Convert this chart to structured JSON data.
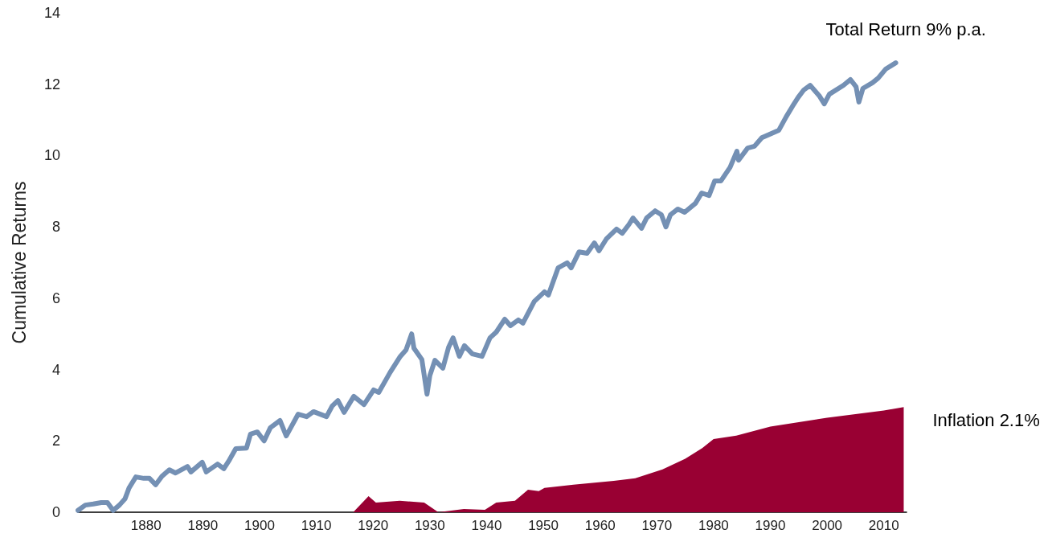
{
  "chart_data": {
    "type": "line",
    "ylabel": "Cumulative Returns",
    "xlim": [
      1868,
      2014
    ],
    "xticks": [
      1880,
      1890,
      1900,
      1910,
      1920,
      1930,
      1940,
      1950,
      1960,
      1970,
      1980,
      1990,
      2000,
      2010
    ],
    "ylim": [
      0,
      14
    ],
    "yticks": [
      0,
      2,
      4,
      6,
      8,
      10,
      12,
      14
    ],
    "marker": "none",
    "series": [
      {
        "name": "Total Return 9% p.a.",
        "color": "#7490b4",
        "x": [
          1868,
          1869.3,
          1870.7,
          1872.1,
          1873.2,
          1874.2,
          1875.3,
          1876.3,
          1877.0,
          1878.2,
          1879.6,
          1880.6,
          1881.7,
          1882.8,
          1884.1,
          1885.2,
          1887.3,
          1887.9,
          1889.9,
          1890.6,
          1892.6,
          1893.7,
          1894.7,
          1895.8,
          1897.7,
          1898.4,
          1899.6,
          1900.8,
          1901.9,
          1903.6,
          1904.7,
          1906.8,
          1908.3,
          1909.5,
          1911.8,
          1912.8,
          1913.8,
          1914.9,
          1916.6,
          1918.4,
          1920.1,
          1921.0,
          1923.0,
          1924.8,
          1925.8,
          1926.8,
          1927.2,
          1928.6,
          1929.5,
          1930.0,
          1930.9,
          1932.3,
          1933.3,
          1934.1,
          1935.2,
          1936.1,
          1937.5,
          1939.2,
          1940.6,
          1941.7,
          1943.2,
          1944.2,
          1945.6,
          1946.4,
          1948.4,
          1950.2,
          1950.9,
          1952.6,
          1954.2,
          1954.9,
          1956.3,
          1957.7,
          1959.0,
          1959.8,
          1961.1,
          1962.9,
          1963.9,
          1965.1,
          1965.8,
          1967.3,
          1968.2,
          1969.7,
          1970.8,
          1971.6,
          1972.4,
          1973.7,
          1974.9,
          1976.8,
          1977.9,
          1979.2,
          1980.2,
          1981.3,
          1982.9,
          1984.1,
          1984.4,
          1986.0,
          1987.2,
          1988.5,
          1990.2,
          1991.5,
          1992.8,
          1993.9,
          1994.9,
          1995.9,
          1997.0,
          1998.6,
          1999.5,
          2000.4,
          2002.9,
          2004.1,
          2005.1,
          2005.6,
          2006.3,
          2008.0,
          2009.0,
          2010.3,
          2012.1
        ],
        "values": [
          0.05,
          0.2,
          0.23,
          0.27,
          0.27,
          0.05,
          0.2,
          0.38,
          0.68,
          0.99,
          0.95,
          0.95,
          0.77,
          1.01,
          1.19,
          1.1,
          1.28,
          1.13,
          1.4,
          1.13,
          1.35,
          1.22,
          1.47,
          1.78,
          1.8,
          2.19,
          2.25,
          2.0,
          2.37,
          2.57,
          2.14,
          2.75,
          2.68,
          2.82,
          2.68,
          2.98,
          3.13,
          2.8,
          3.25,
          3.02,
          3.43,
          3.36,
          3.92,
          4.37,
          4.55,
          5.0,
          4.6,
          4.28,
          3.31,
          3.83,
          4.26,
          4.04,
          4.62,
          4.89,
          4.37,
          4.67,
          4.44,
          4.37,
          4.89,
          5.05,
          5.41,
          5.23,
          5.39,
          5.3,
          5.91,
          6.18,
          6.09,
          6.85,
          6.99,
          6.85,
          7.3,
          7.26,
          7.55,
          7.33,
          7.66,
          7.94,
          7.82,
          8.07,
          8.25,
          7.96,
          8.25,
          8.45,
          8.34,
          8.0,
          8.34,
          8.5,
          8.41,
          8.66,
          8.95,
          8.88,
          9.29,
          9.29,
          9.67,
          10.12,
          9.87,
          10.21,
          10.26,
          10.5,
          10.62,
          10.71,
          11.09,
          11.38,
          11.63,
          11.84,
          11.97,
          11.68,
          11.45,
          11.72,
          11.97,
          12.13,
          11.93,
          11.5,
          11.88,
          12.04,
          12.17,
          12.42,
          12.6
        ]
      },
      {
        "name": "Inflation 2.1%",
        "type": "area",
        "color": "#990033",
        "x": [
          1868,
          1916.5,
          1919.2,
          1920.5,
          1924.7,
          1929,
          1931.5,
          1936,
          1939.7,
          1941.7,
          1945,
          1947.3,
          1949.2,
          1950.2,
          1955.3,
          1962.4,
          1966.2,
          1971,
          1975,
          1978,
          1980,
          1984,
          1990,
          2000,
          2010,
          2013.5
        ],
        "values": [
          0,
          0,
          0.45,
          0.27,
          0.32,
          0.27,
          0,
          0.09,
          0.07,
          0.27,
          0.32,
          0.63,
          0.59,
          0.68,
          0.77,
          0.88,
          0.95,
          1.2,
          1.5,
          1.8,
          2.05,
          2.15,
          2.4,
          2.65,
          2.85,
          2.95
        ]
      }
    ]
  }
}
